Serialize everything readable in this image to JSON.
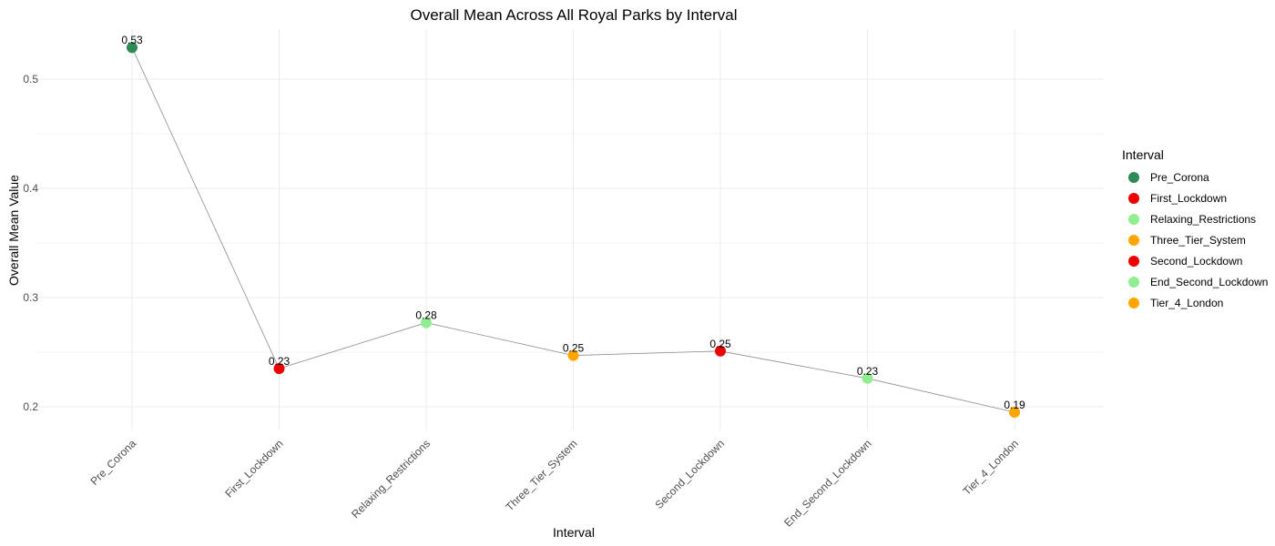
{
  "chart_data": {
    "type": "line",
    "title": "Overall Mean Across All Royal Parks by Interval",
    "xlabel": "Interval",
    "ylabel": "Overall Mean Value",
    "categories": [
      "Pre_Corona",
      "First_Lockdown",
      "Relaxing_Restrictions",
      "Three_Tier_System",
      "Second_Lockdown",
      "End_Second_Lockdown",
      "Tier_4_London"
    ],
    "values": [
      0.529,
      0.235,
      0.277,
      0.247,
      0.251,
      0.226,
      0.195
    ],
    "value_labels": [
      "0.53",
      "0.23",
      "0.28",
      "0.25",
      "0.25",
      "0.23",
      "0.19"
    ],
    "point_colors": [
      "#2e8b57",
      "#ee0000",
      "#90ee90",
      "#ffa500",
      "#ee0000",
      "#90ee90",
      "#ffa500"
    ],
    "ylim": [
      0.18,
      0.545
    ],
    "yticks": [
      0.2,
      0.3,
      0.4,
      0.5
    ],
    "ytick_labels": [
      "0.2",
      "0.3",
      "0.4",
      "0.5"
    ],
    "grid": true,
    "legend": {
      "title": "Interval",
      "position": "right",
      "items": [
        {
          "label": "Pre_Corona",
          "color": "#2e8b57"
        },
        {
          "label": "First_Lockdown",
          "color": "#ee0000"
        },
        {
          "label": "Relaxing_Restrictions",
          "color": "#90ee90"
        },
        {
          "label": "Three_Tier_System",
          "color": "#ffa500"
        },
        {
          "label": "Second_Lockdown",
          "color": "#ee0000"
        },
        {
          "label": "End_Second_Lockdown",
          "color": "#90ee90"
        },
        {
          "label": "Tier_4_London",
          "color": "#ffa500"
        }
      ]
    }
  }
}
